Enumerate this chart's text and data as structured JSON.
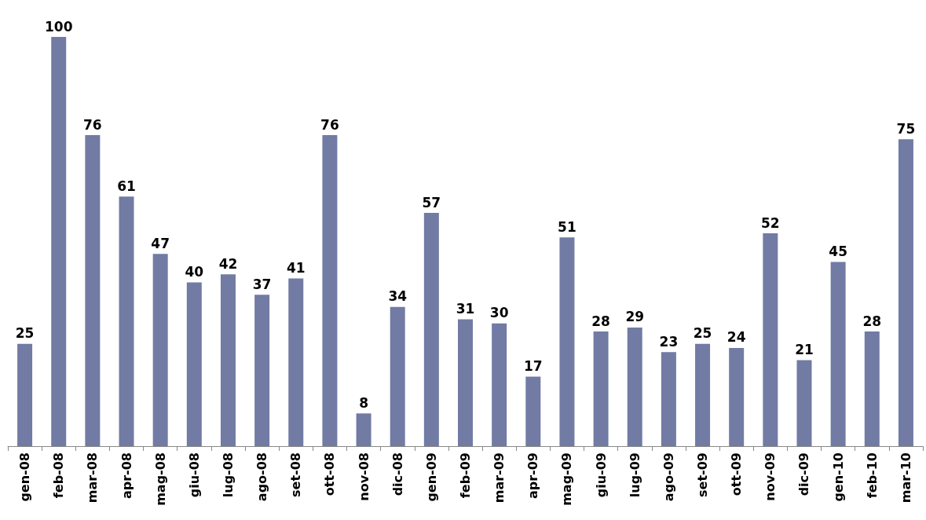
{
  "chart_data": {
    "type": "bar",
    "categories": [
      "gen-08",
      "feb-08",
      "mar-08",
      "apr-08",
      "mag-08",
      "giu-08",
      "lug-08",
      "ago-08",
      "set-08",
      "ott-08",
      "nov-08",
      "dic-08",
      "gen-09",
      "feb-09",
      "mar-09",
      "apr-09",
      "mag-09",
      "giu-09",
      "lug-09",
      "ago-09",
      "set-09",
      "ott-09",
      "nov-09",
      "dic-09",
      "gen-10",
      "feb-10",
      "mar-10"
    ],
    "values": [
      25,
      100,
      76,
      61,
      47,
      40,
      42,
      37,
      41,
      76,
      8,
      34,
      57,
      31,
      30,
      17,
      51,
      28,
      29,
      23,
      25,
      24,
      52,
      21,
      45,
      28,
      75
    ],
    "color": "#717ba3",
    "data_labels": true
  }
}
